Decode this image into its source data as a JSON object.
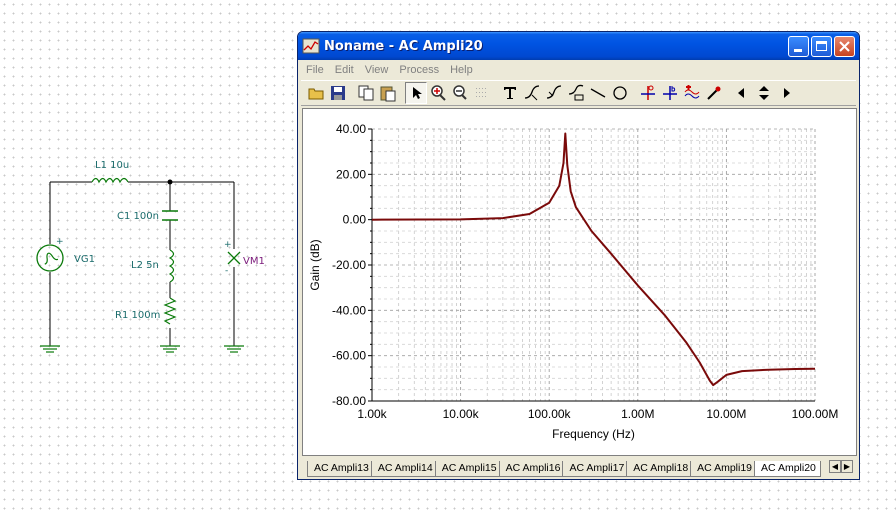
{
  "schematic": {
    "components": [
      {
        "id": "L1",
        "label": "L1 10u"
      },
      {
        "id": "C1",
        "label": "C1 100n"
      },
      {
        "id": "L2",
        "label": "L2 5n"
      },
      {
        "id": "R1",
        "label": "R1 100m"
      },
      {
        "id": "VG1",
        "label": "VG1"
      },
      {
        "id": "VM1",
        "label": "VM1"
      }
    ],
    "plus": "+",
    "minus": "-"
  },
  "window": {
    "title": "Noname - AC Ampli20",
    "menu": [
      "File",
      "Edit",
      "View",
      "Process",
      "Help"
    ],
    "toolbar_icons": [
      "open-icon",
      "save-icon",
      "copy-icon",
      "paste-icon",
      "pointer-icon",
      "zoom-in-icon",
      "zoom-fit-icon",
      "grid-icon",
      "text-icon",
      "curve-add-icon",
      "curve-edit-icon",
      "curve-label-icon",
      "line-icon",
      "circle-icon",
      "cursor-a-icon",
      "cursor-b-icon",
      "waveform-icon",
      "probe-icon",
      "arrow-left-icon",
      "arrow-updown-icon",
      "arrow-right-icon"
    ],
    "tabs": [
      "AC Ampli13",
      "AC Ampli14",
      "AC Ampli15",
      "AC Ampli16",
      "AC Ampli17",
      "AC Ampli18",
      "AC Ampli19",
      "AC Ampli20"
    ],
    "active_tab": "AC Ampli20"
  },
  "chart_data": {
    "type": "line",
    "xscale": "log",
    "xlabel": "Frequency (Hz)",
    "ylabel": "Gain (dB)",
    "xlim": [
      1000,
      100000000
    ],
    "ylim": [
      -80,
      40
    ],
    "xticks": [
      {
        "value": 1000,
        "label": "1.00k"
      },
      {
        "value": 10000,
        "label": "10.00k"
      },
      {
        "value": 100000,
        "label": "100.00k"
      },
      {
        "value": 1000000,
        "label": "1.00M"
      },
      {
        "value": 10000000,
        "label": "10.00M"
      },
      {
        "value": 100000000,
        "label": "100.00M"
      }
    ],
    "yticks": [
      {
        "value": 40,
        "label": "40.00"
      },
      {
        "value": 20,
        "label": "20.00"
      },
      {
        "value": 0,
        "label": "0.00"
      },
      {
        "value": -20,
        "label": "-20.00"
      },
      {
        "value": -40,
        "label": "-40.00"
      },
      {
        "value": -60,
        "label": "-60.00"
      },
      {
        "value": -80,
        "label": "-80.00"
      }
    ],
    "grid": true,
    "color": "#7a0a0a",
    "series": [
      {
        "x": [
          1000,
          10000,
          30000,
          60000,
          100000,
          130000,
          145000,
          152000,
          160000,
          175000,
          200000,
          300000,
          500000,
          1000000,
          2000000,
          3500000,
          5000000,
          6500000,
          7100000,
          8000000,
          10000000,
          15000000,
          30000000,
          60000000,
          100000000
        ],
        "y": [
          0.0,
          0.1,
          0.7,
          2.5,
          7.5,
          15.0,
          25.0,
          38.0,
          24.0,
          12.5,
          5.5,
          -5.0,
          -15.0,
          -29.0,
          -42.0,
          -54.0,
          -63.0,
          -71.0,
          -73.0,
          -71.5,
          -68.5,
          -66.8,
          -66.2,
          -65.9,
          -65.8
        ]
      }
    ]
  }
}
